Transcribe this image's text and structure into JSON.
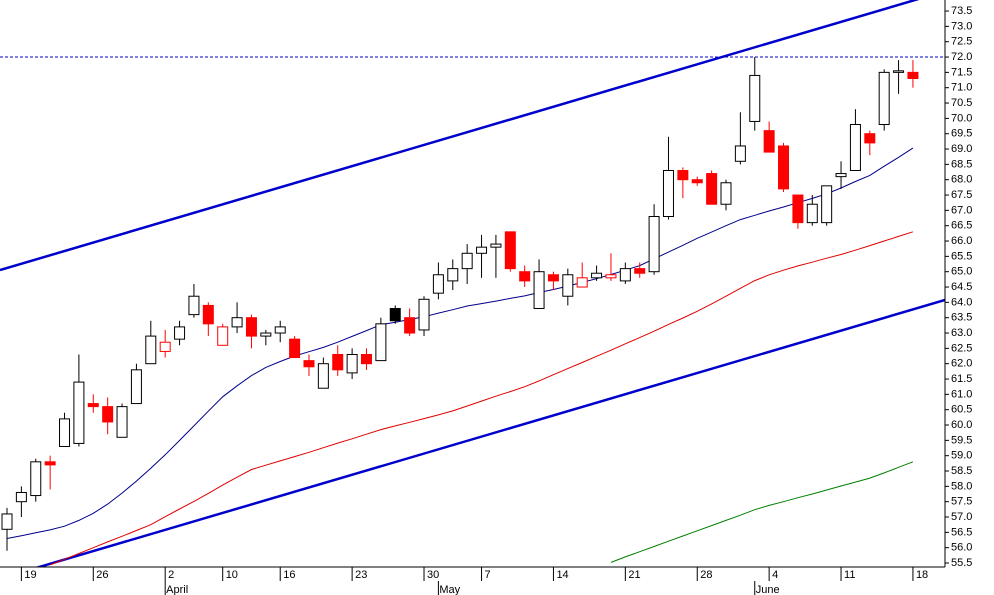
{
  "chart_data": {
    "type": "candlestick",
    "categories": [
      null,
      "19",
      null,
      null,
      null,
      null,
      "26",
      null,
      null,
      null,
      null,
      "2",
      null,
      null,
      null,
      "10",
      null,
      null,
      null,
      "16",
      null,
      null,
      null,
      null,
      "23",
      null,
      null,
      null,
      null,
      "30",
      null,
      null,
      null,
      "7",
      null,
      null,
      null,
      null,
      "14",
      null,
      null,
      null,
      null,
      "21",
      null,
      null,
      null,
      null,
      "28",
      null,
      null,
      null,
      null,
      "4",
      null,
      null,
      null,
      null,
      "11",
      null,
      null,
      null,
      null,
      "18"
    ],
    "month_categories": [
      null,
      null,
      null,
      null,
      null,
      null,
      null,
      null,
      null,
      null,
      null,
      "April",
      null,
      null,
      null,
      null,
      null,
      null,
      null,
      null,
      null,
      null,
      null,
      null,
      null,
      null,
      null,
      null,
      null,
      null,
      "May",
      null,
      null,
      null,
      null,
      null,
      null,
      null,
      null,
      null,
      null,
      null,
      null,
      null,
      null,
      null,
      null,
      null,
      null,
      null,
      null,
      null,
      "June",
      null,
      null,
      null,
      null,
      null,
      null,
      null,
      null,
      null,
      null,
      null
    ],
    "open": [
      56.6,
      57.5,
      57.7,
      58.8,
      59.3,
      59.4,
      60.7,
      60.6,
      59.6,
      60.7,
      62.0,
      62.4,
      62.8,
      63.6,
      63.9,
      62.6,
      63.2,
      63.5,
      62.9,
      63.0,
      62.8,
      62.1,
      61.2,
      62.3,
      61.7,
      62.3,
      62.1,
      63.8,
      63.5,
      63.1,
      64.3,
      64.7,
      65.1,
      65.6,
      65.8,
      66.3,
      65.0,
      63.8,
      64.9,
      64.2,
      64.5,
      64.8,
      64.8,
      64.7,
      65.1,
      65.0,
      66.8,
      68.3,
      68.0,
      68.2,
      67.2,
      68.6,
      69.9,
      69.6,
      69.1,
      67.5,
      66.6,
      66.6,
      68.1,
      68.3,
      69.5,
      69.8,
      71.5,
      71.5
    ],
    "high": [
      57.3,
      58.0,
      58.9,
      59.0,
      60.4,
      62.3,
      61.0,
      60.9,
      60.7,
      62.0,
      63.4,
      63.1,
      63.4,
      64.6,
      64.0,
      63.3,
      64.0,
      63.6,
      63.1,
      63.4,
      62.9,
      62.3,
      62.2,
      62.6,
      62.5,
      62.5,
      63.5,
      63.9,
      63.8,
      64.2,
      65.3,
      65.4,
      65.9,
      66.2,
      66.2,
      66.3,
      65.2,
      65.4,
      65.0,
      65.1,
      65.3,
      65.2,
      65.6,
      65.3,
      65.3,
      67.2,
      69.4,
      68.4,
      68.1,
      68.3,
      68.0,
      70.2,
      72.0,
      69.9,
      69.2,
      67.5,
      67.5,
      67.8,
      68.6,
      70.3,
      69.6,
      71.6,
      71.9,
      71.9
    ],
    "low": [
      55.9,
      57.0,
      57.5,
      57.9,
      59.3,
      59.3,
      60.4,
      59.7,
      59.6,
      60.7,
      62.0,
      62.2,
      62.6,
      63.5,
      62.9,
      62.6,
      63.0,
      62.5,
      62.6,
      62.7,
      62.2,
      61.6,
      61.2,
      61.6,
      61.5,
      61.8,
      62.1,
      63.3,
      62.9,
      62.9,
      64.1,
      64.4,
      64.6,
      64.8,
      64.8,
      65.0,
      64.5,
      63.8,
      64.4,
      63.9,
      64.5,
      64.7,
      64.7,
      64.6,
      64.8,
      64.9,
      66.7,
      67.4,
      67.8,
      67.2,
      67.0,
      68.5,
      69.6,
      68.9,
      67.6,
      66.4,
      66.5,
      66.5,
      67.7,
      68.3,
      68.8,
      69.6,
      70.8,
      71.0
    ],
    "close": [
      57.1,
      57.8,
      58.8,
      58.7,
      60.2,
      61.4,
      60.6,
      60.1,
      60.6,
      61.8,
      62.9,
      62.7,
      63.2,
      64.2,
      63.3,
      63.2,
      63.5,
      62.9,
      63.0,
      63.2,
      62.2,
      61.9,
      62.0,
      61.8,
      62.3,
      62.0,
      63.3,
      63.4,
      63.0,
      64.1,
      64.9,
      65.1,
      65.6,
      65.8,
      65.9,
      65.1,
      64.7,
      65.0,
      64.7,
      64.9,
      64.8,
      64.95,
      64.9,
      65.1,
      64.95,
      66.8,
      68.3,
      68.0,
      67.9,
      67.2,
      67.9,
      69.1,
      71.4,
      68.9,
      67.7,
      66.6,
      67.2,
      67.8,
      68.2,
      69.8,
      69.2,
      71.5,
      71.55,
      71.3
    ],
    "rising_color": "#000000",
    "falling_color": "#ff0000",
    "series": [
      {
        "color": "#00008b",
        "values": [
          56.3,
          56.39,
          56.49,
          56.58,
          56.7,
          56.89,
          57.12,
          57.42,
          57.78,
          58.17,
          58.59,
          59.03,
          59.5,
          59.97,
          60.45,
          60.92,
          61.28,
          61.61,
          61.88,
          62.07,
          62.25,
          62.39,
          62.53,
          62.7,
          62.89,
          63.08,
          63.27,
          63.35,
          63.44,
          63.53,
          63.65,
          63.76,
          63.88,
          63.96,
          64.04,
          64.13,
          64.21,
          64.32,
          64.42,
          64.53,
          64.65,
          64.77,
          64.91,
          65.05,
          65.2,
          65.42,
          65.64,
          65.86,
          66.09,
          66.29,
          66.5,
          66.7,
          66.84,
          66.98,
          67.11,
          67.25,
          67.39,
          67.54,
          67.73,
          67.94,
          68.14,
          68.44,
          68.73,
          69.03
        ]
      },
      {
        "color": "#e00000",
        "values": [
          null,
          null,
          null,
          55.44,
          55.62,
          55.81,
          56.0,
          56.19,
          56.37,
          56.56,
          56.75,
          57.01,
          57.26,
          57.51,
          57.77,
          58.04,
          58.3,
          58.55,
          58.69,
          58.83,
          58.97,
          59.11,
          59.26,
          59.41,
          59.55,
          59.7,
          59.85,
          59.97,
          60.09,
          60.21,
          60.33,
          60.46,
          60.62,
          60.78,
          60.94,
          61.09,
          61.25,
          61.44,
          61.64,
          61.84,
          62.04,
          62.24,
          62.44,
          62.65,
          62.85,
          63.06,
          63.28,
          63.49,
          63.71,
          63.95,
          64.2,
          64.46,
          64.71,
          64.9,
          65.05,
          65.19,
          65.31,
          65.44,
          65.56,
          65.7,
          65.85,
          66.0,
          66.15,
          66.3
        ]
      },
      {
        "color": "#008000",
        "values": [
          null,
          null,
          null,
          null,
          null,
          null,
          null,
          null,
          null,
          null,
          null,
          null,
          null,
          null,
          null,
          null,
          null,
          null,
          null,
          null,
          null,
          null,
          null,
          null,
          null,
          null,
          null,
          null,
          null,
          null,
          null,
          null,
          null,
          null,
          null,
          null,
          null,
          null,
          null,
          null,
          null,
          null,
          55.52,
          55.7,
          55.87,
          56.04,
          56.21,
          56.38,
          56.55,
          56.72,
          56.89,
          57.06,
          57.24,
          57.38,
          57.5,
          57.63,
          57.75,
          57.88,
          58.01,
          58.14,
          58.27,
          58.44,
          58.62,
          58.8
        ]
      }
    ],
    "trendlines": [
      {
        "color": "#0000cc",
        "x": [
          0,
          63
        ],
        "values": [
          65.12,
          73.84
        ]
      },
      {
        "color": "#0000cc",
        "x": [
          0,
          63
        ],
        "values": [
          55.06,
          63.77
        ]
      }
    ],
    "hline": {
      "value": 72,
      "color": "#0000cc"
    },
    "ylim": [
      55.37,
      73.86
    ],
    "yticks": [
      55.5,
      {
        "value": 56,
        "label": "56.0"
      },
      56.5,
      {
        "value": 57,
        "label": "57.0"
      },
      57.5,
      {
        "value": 58,
        "label": "58.0"
      },
      58.5,
      {
        "value": 59,
        "label": "59.0"
      },
      59.5,
      {
        "value": 60,
        "label": "60.0"
      },
      60.5,
      {
        "value": 61,
        "label": "61.0"
      },
      61.5,
      {
        "value": 62,
        "label": "62.0"
      },
      62.5,
      {
        "value": 63,
        "label": "63.0"
      },
      63.5,
      {
        "value": 64,
        "label": "64.0"
      },
      64.5,
      {
        "value": 65,
        "label": "65.0"
      },
      65.5,
      {
        "value": 66,
        "label": "66.0"
      },
      66.5,
      {
        "value": 67,
        "label": "67.0"
      },
      67.5,
      {
        "value": 68,
        "label": "68.0"
      },
      68.5,
      {
        "value": 69,
        "label": "69.0"
      },
      69.5,
      {
        "value": 70,
        "label": "70.0"
      },
      70.5,
      {
        "value": 71,
        "label": "71.0"
      },
      71.5,
      {
        "value": 72,
        "label": "72.0"
      },
      72.5,
      {
        "value": 73,
        "label": "73.0"
      },
      73.5
    ]
  }
}
